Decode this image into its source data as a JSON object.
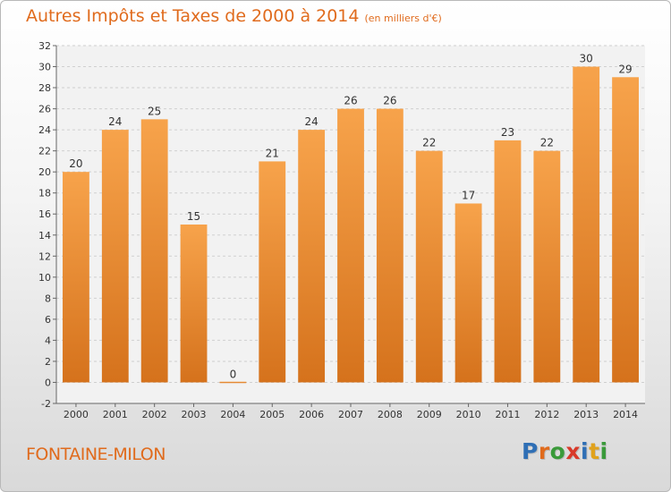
{
  "title": {
    "main": "Autres Impôts et Taxes de 2000 à 2014",
    "unit": "(en milliers d'€)"
  },
  "place_name": "FONTAINE-MILON",
  "logo": {
    "text": "Proxiti",
    "letters": [
      {
        "ch": "P",
        "color": "#2f6fb5"
      },
      {
        "ch": "r",
        "color": "#e06b1d"
      },
      {
        "ch": "o",
        "color": "#3a9a3a"
      },
      {
        "ch": "x",
        "color": "#d83a2a"
      },
      {
        "ch": "i",
        "color": "#2f6fb5"
      },
      {
        "ch": "t",
        "color": "#e0a21d"
      },
      {
        "ch": "i",
        "color": "#3a9a3a"
      }
    ]
  },
  "colors": {
    "accent": "#e06b1d",
    "bar_top": "#f7a34b",
    "bar_bottom": "#d5721c",
    "grid": "#cfcfcf",
    "axis_text": "#333333"
  },
  "chart_data": {
    "type": "bar",
    "categories": [
      "2000",
      "2001",
      "2002",
      "2003",
      "2004",
      "2005",
      "2006",
      "2007",
      "2008",
      "2009",
      "2010",
      "2011",
      "2012",
      "2013",
      "2014"
    ],
    "values": [
      20,
      24,
      25,
      15,
      0,
      21,
      24,
      26,
      26,
      22,
      17,
      23,
      22,
      30,
      29
    ],
    "ylim": [
      -2,
      32
    ],
    "yticks": [
      -2,
      0,
      2,
      4,
      6,
      8,
      10,
      12,
      14,
      16,
      18,
      20,
      22,
      24,
      26,
      28,
      30,
      32
    ],
    "grid": "horizontal dashed",
    "data_labels": true
  }
}
